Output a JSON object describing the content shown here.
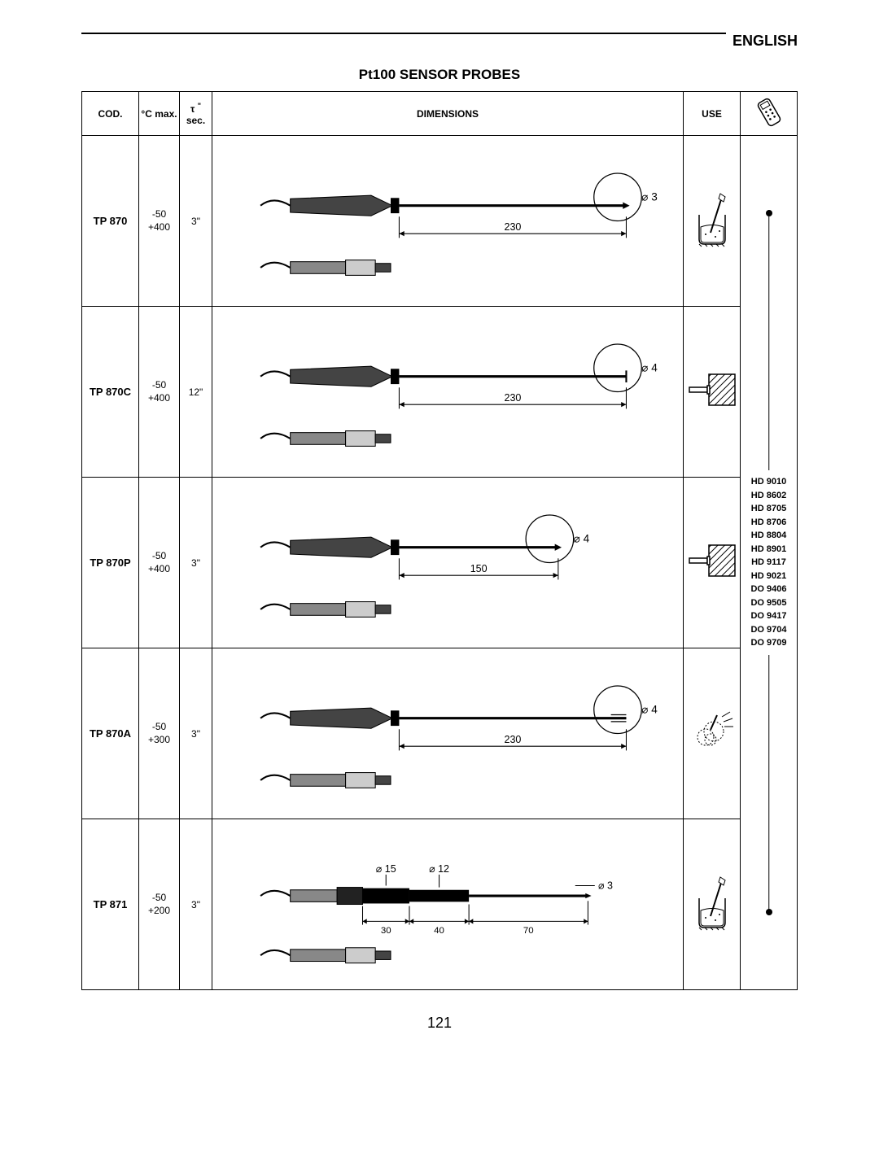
{
  "header": {
    "lang": "ENGLISH"
  },
  "title": "Pt100 SENSOR PROBES",
  "table": {
    "headers": {
      "cod": "COD.",
      "temp": "°C max.",
      "sec_prefix": "τ",
      "sec": "sec.",
      "dim": "DIMENSIONS",
      "use": "USE"
    },
    "rows": [
      {
        "cod": "TP 870",
        "temp_lo": "-50",
        "temp_hi": "+400",
        "sec": "3\"",
        "probe": {
          "length": "230",
          "tip_dia": "⌀ 3",
          "segments": null,
          "tip_type": "point"
        },
        "use_icon": "liquid"
      },
      {
        "cod": "TP 870C",
        "temp_lo": "-50",
        "temp_hi": "+400",
        "sec": "12\"",
        "probe": {
          "length": "230",
          "tip_dia": "⌀ 4",
          "segments": null,
          "tip_type": "flat"
        },
        "use_icon": "contact"
      },
      {
        "cod": "TP 870P",
        "temp_lo": "-50",
        "temp_hi": "+400",
        "sec": "3\"",
        "probe": {
          "length": "150",
          "tip_dia": "⌀ 4",
          "segments": null,
          "tip_type": "point",
          "short": true
        },
        "use_icon": "contact"
      },
      {
        "cod": "TP 870A",
        "temp_lo": "-50",
        "temp_hi": "+300",
        "sec": "3\"",
        "probe": {
          "length": "230",
          "tip_dia": "⌀ 4",
          "segments": null,
          "tip_type": "slot"
        },
        "use_icon": "air"
      },
      {
        "cod": "TP 871",
        "temp_lo": "-50",
        "temp_hi": "+200",
        "sec": "3\"",
        "probe": {
          "tip_dia": "⌀ 3",
          "handle_dia1": "⌀ 15",
          "handle_dia2": "⌀ 12",
          "segments": [
            {
              "len": "30"
            },
            {
              "len": "40"
            },
            {
              "len": "70"
            }
          ],
          "tip_type": "point",
          "type": "segmented"
        },
        "use_icon": "liquid"
      }
    ]
  },
  "compat_models": [
    "HD 9010",
    "HD 8602",
    "HD 8705",
    "HD 8706",
    "HD 8804",
    "HD 8901",
    "HD 9117",
    "HD 9021",
    "DO 9406",
    "DO 9505",
    "DO 9417",
    "DO 9704",
    "DO 9709"
  ],
  "page_num": "121",
  "styling": {
    "stroke": "#000000",
    "bg": "#ffffff",
    "hatch": "#000000",
    "font_main": "Arial",
    "border_width": 1.5
  }
}
